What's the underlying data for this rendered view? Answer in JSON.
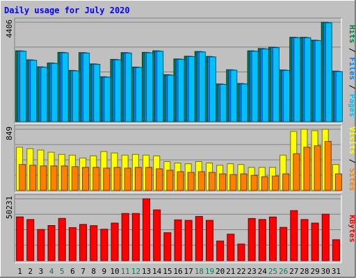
{
  "chart_data": {
    "type": "bar",
    "title": "Daily usage for July 2020",
    "categories": [
      "1",
      "2",
      "3",
      "4",
      "5",
      "6",
      "7",
      "8",
      "9",
      "10",
      "11",
      "12",
      "13",
      "14",
      "15",
      "16",
      "17",
      "18",
      "19",
      "20",
      "21",
      "22",
      "23",
      "24",
      "25",
      "26",
      "27",
      "28",
      "29",
      "30",
      "31"
    ],
    "weekend_days": [
      "4",
      "5",
      "11",
      "12",
      "18",
      "19",
      "25",
      "26"
    ],
    "panels": [
      {
        "name": "hits_files_pages",
        "label_parts": [
          "Pages",
          "Files",
          "Hits"
        ],
        "label_separator": " / ",
        "ymax": 4406,
        "ymax_label": "4406",
        "series": [
          {
            "name": "Hits",
            "color": "#008040",
            "values": [
              3140,
              2740,
              2430,
              2600,
              3070,
              2270,
              3060,
              2560,
              1990,
              2760,
              3060,
              2420,
              3070,
              3140,
              2080,
              2780,
              2900,
              3110,
              2890,
              1670,
              2300,
              1690,
              3140,
              3240,
              3300,
              2290,
              3740,
              3740,
              3610,
              4406,
              2240
            ]
          },
          {
            "name": "Files",
            "color": "#0080ff",
            "values": [
              3130,
              2730,
              2420,
              2590,
              3060,
              2260,
              3050,
              2550,
              1980,
              2750,
              3050,
              2410,
              3060,
              3130,
              2070,
              2770,
              2890,
              3100,
              2880,
              1660,
              2290,
              1680,
              3130,
              3230,
              3290,
              2280,
              3730,
              3730,
              3600,
              4390,
              2230
            ]
          },
          {
            "name": "Pages",
            "color": "#00c0ff",
            "values": [
              3120,
              2720,
              2410,
              2580,
              3050,
              2250,
              3040,
              2540,
              1970,
              2740,
              3040,
              2400,
              3050,
              3120,
              2060,
              2760,
              2880,
              3090,
              2870,
              1650,
              2280,
              1670,
              3120,
              3220,
              3280,
              2270,
              3720,
              3720,
              3590,
              4380,
              2220
            ]
          }
        ]
      },
      {
        "name": "visits_sites",
        "label_parts": [
          "Sites",
          "Visits"
        ],
        "label_separator": " / ",
        "ymax": 849,
        "ymax_label": "849",
        "series": [
          {
            "name": "Visits",
            "color": "#ffff00",
            "values": [
              600,
              580,
              560,
              530,
              500,
              490,
              450,
              480,
              540,
              520,
              490,
              500,
              490,
              480,
              400,
              380,
              370,
              400,
              380,
              350,
              370,
              360,
              320,
              320,
              320,
              490,
              820,
              849,
              830,
              849,
              360
            ]
          },
          {
            "name": "Sites",
            "color": "#ff8000",
            "values": [
              360,
              350,
              340,
              340,
              340,
              330,
              320,
              320,
              310,
              320,
              310,
              320,
              320,
              300,
              280,
              260,
              250,
              260,
              250,
              230,
              220,
              230,
              210,
              190,
              200,
              230,
              510,
              600,
              620,
              680,
              230
            ]
          }
        ]
      },
      {
        "name": "kbytes",
        "label_parts": [
          "KBytes"
        ],
        "label_separator": "",
        "ymax": 50231,
        "ymax_label": "50231",
        "series": [
          {
            "name": "KBytes",
            "color": "#ff0000",
            "values": [
              35500,
              33400,
              25300,
              28500,
              34300,
              26800,
              29400,
              28400,
              25500,
              30500,
              38300,
              38300,
              50231,
              41200,
              22700,
              33100,
              32700,
              35900,
              32700,
              15900,
              21500,
              13500,
              34200,
              33400,
              35400,
              27000,
              40600,
              33400,
              30500,
              37700,
              17000
            ]
          }
        ]
      }
    ]
  },
  "colors": {
    "background": "#c0c0c0",
    "plot_background": "#c0c0c0",
    "gridline": "#808080",
    "title": "#0000ff",
    "day_label": "#000000",
    "weekend_label": "#00805c"
  }
}
